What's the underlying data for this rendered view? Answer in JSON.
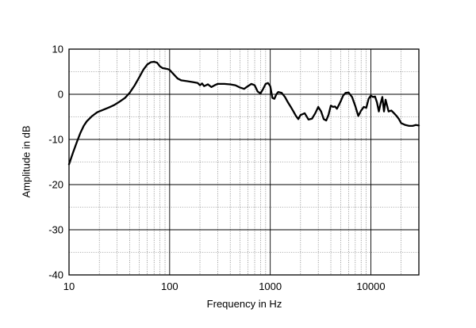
{
  "chart_data": {
    "type": "line",
    "title": "",
    "xlabel": "Frequency in Hz",
    "ylabel": "Amplitude in dB",
    "x_scale": "log",
    "xlim": [
      10,
      30000
    ],
    "ylim": [
      -40,
      10
    ],
    "x_tick_labels": [
      "10",
      "100",
      "1000",
      "10000"
    ],
    "x_tick_values": [
      10,
      100,
      1000,
      10000
    ],
    "y_tick_labels": [
      "10",
      "0",
      "-10",
      "-20",
      "-30",
      "-40"
    ],
    "y_tick_values": [
      10,
      0,
      -10,
      -20,
      -30,
      -40
    ],
    "grid": true,
    "line_color": "#000000",
    "series": [
      {
        "x": [
          10,
          11,
          12,
          13,
          14,
          15,
          17,
          19,
          22,
          25,
          28,
          32,
          36,
          40,
          45,
          50,
          55,
          60,
          65,
          70,
          75,
          80,
          85,
          90,
          95,
          100,
          110,
          120,
          130,
          150,
          170,
          190,
          200,
          210,
          220,
          240,
          260,
          280,
          300,
          350,
          400,
          450,
          500,
          550,
          600,
          650,
          700,
          750,
          800,
          850,
          900,
          950,
          1000,
          1050,
          1100,
          1150,
          1200,
          1300,
          1400,
          1500,
          1600,
          1700,
          1800,
          1900,
          2000,
          2200,
          2400,
          2600,
          2800,
          3000,
          3200,
          3400,
          3600,
          3800,
          4000,
          4200,
          4400,
          4600,
          4800,
          5000,
          5300,
          5600,
          6000,
          6500,
          7000,
          7500,
          8000,
          8500,
          9000,
          9500,
          10000,
          10500,
          11000,
          11500,
          12000,
          12500,
          13000,
          13500,
          14000,
          15000,
          16000,
          17000,
          18000,
          19000,
          20000,
          22000,
          24000,
          26000,
          28000,
          30000
        ],
        "y": [
          -15.5,
          -12.8,
          -10.5,
          -8.5,
          -7.0,
          -6.0,
          -4.8,
          -4.0,
          -3.4,
          -2.9,
          -2.4,
          -1.6,
          -0.8,
          0.3,
          2.0,
          3.8,
          5.5,
          6.6,
          7.1,
          7.2,
          7.0,
          6.2,
          5.8,
          5.7,
          5.6,
          5.4,
          4.4,
          3.5,
          3.1,
          2.9,
          2.7,
          2.5,
          2.0,
          2.4,
          1.8,
          2.2,
          1.6,
          2.0,
          2.3,
          2.3,
          2.2,
          2.0,
          1.5,
          1.2,
          1.8,
          2.3,
          2.0,
          0.6,
          0.2,
          1.2,
          2.3,
          2.5,
          1.8,
          -0.8,
          -1.0,
          0.0,
          0.5,
          0.3,
          -0.6,
          -1.8,
          -2.8,
          -3.8,
          -4.8,
          -5.5,
          -4.6,
          -4.2,
          -5.6,
          -5.4,
          -4.2,
          -2.8,
          -3.8,
          -5.5,
          -5.8,
          -4.5,
          -2.5,
          -2.8,
          -2.7,
          -3.2,
          -2.4,
          -1.6,
          -0.3,
          0.3,
          0.4,
          -0.6,
          -2.6,
          -4.8,
          -3.6,
          -2.8,
          -3.0,
          -1.0,
          -0.3,
          -0.6,
          -0.5,
          -1.8,
          -3.8,
          -2.0,
          -0.6,
          -3.8,
          -1.2,
          -3.8,
          -3.6,
          -4.2,
          -4.8,
          -5.5,
          -6.4,
          -6.8,
          -7.0,
          -7.0,
          -6.8,
          -6.9
        ]
      }
    ]
  }
}
